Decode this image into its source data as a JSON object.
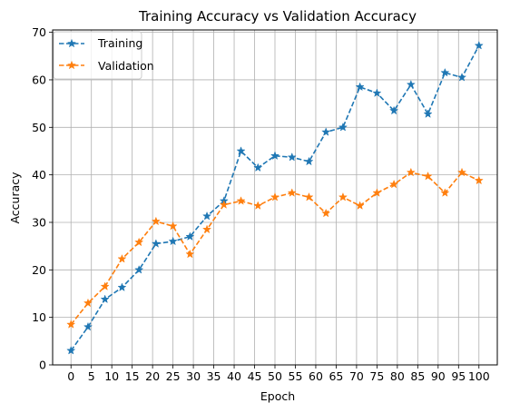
{
  "chart_data": {
    "type": "line",
    "title": "Training Accuracy vs Validation Accuracy",
    "xlabel": "Epoch",
    "ylabel": "Accuracy",
    "xlim": [
      -4.5,
      104.5
    ],
    "ylim": [
      0,
      70.5
    ],
    "grid": true,
    "legend_position": "top-left",
    "x_ticks": [
      0,
      5,
      10,
      15,
      20,
      25,
      30,
      35,
      40,
      45,
      50,
      55,
      60,
      65,
      70,
      75,
      80,
      85,
      90,
      95,
      100
    ],
    "x_tick_labels": [
      "0",
      "5",
      "10",
      "15",
      "20",
      "25",
      "30",
      "35",
      "40",
      "45",
      "50",
      "55",
      "60",
      "65",
      "70",
      "75",
      "80",
      "85",
      "90",
      "95",
      "100"
    ],
    "y_ticks": [
      0,
      10,
      20,
      30,
      40,
      50,
      60,
      70
    ],
    "y_tick_labels": [
      "0",
      "10",
      "20",
      "30",
      "40",
      "50",
      "60",
      "70"
    ],
    "x": [
      0,
      4.17,
      8.33,
      12.5,
      16.67,
      20.83,
      25,
      29.17,
      33.33,
      37.5,
      41.67,
      45.83,
      50,
      54.17,
      58.33,
      62.5,
      66.67,
      70.83,
      75,
      79.17,
      83.33,
      87.5,
      91.67,
      95.83,
      100
    ],
    "series": [
      {
        "name": "Training",
        "color": "#1f77b4",
        "values": [
          3.0,
          8.0,
          13.8,
          16.3,
          20.0,
          25.5,
          26.0,
          27.0,
          31.3,
          34.5,
          45.0,
          41.5,
          44.0,
          43.7,
          42.8,
          49.0,
          50.0,
          58.5,
          57.2,
          53.5,
          59.0,
          52.8,
          61.5,
          60.5,
          67.2
        ]
      },
      {
        "name": "Validation",
        "color": "#ff7f0e",
        "values": [
          8.5,
          13.0,
          16.5,
          22.3,
          25.8,
          30.2,
          29.2,
          23.3,
          28.5,
          33.7,
          34.5,
          33.5,
          35.3,
          36.2,
          35.3,
          31.9,
          35.3,
          33.5,
          36.2,
          38.0,
          40.5,
          39.7,
          36.2,
          40.5,
          38.8
        ]
      }
    ]
  }
}
